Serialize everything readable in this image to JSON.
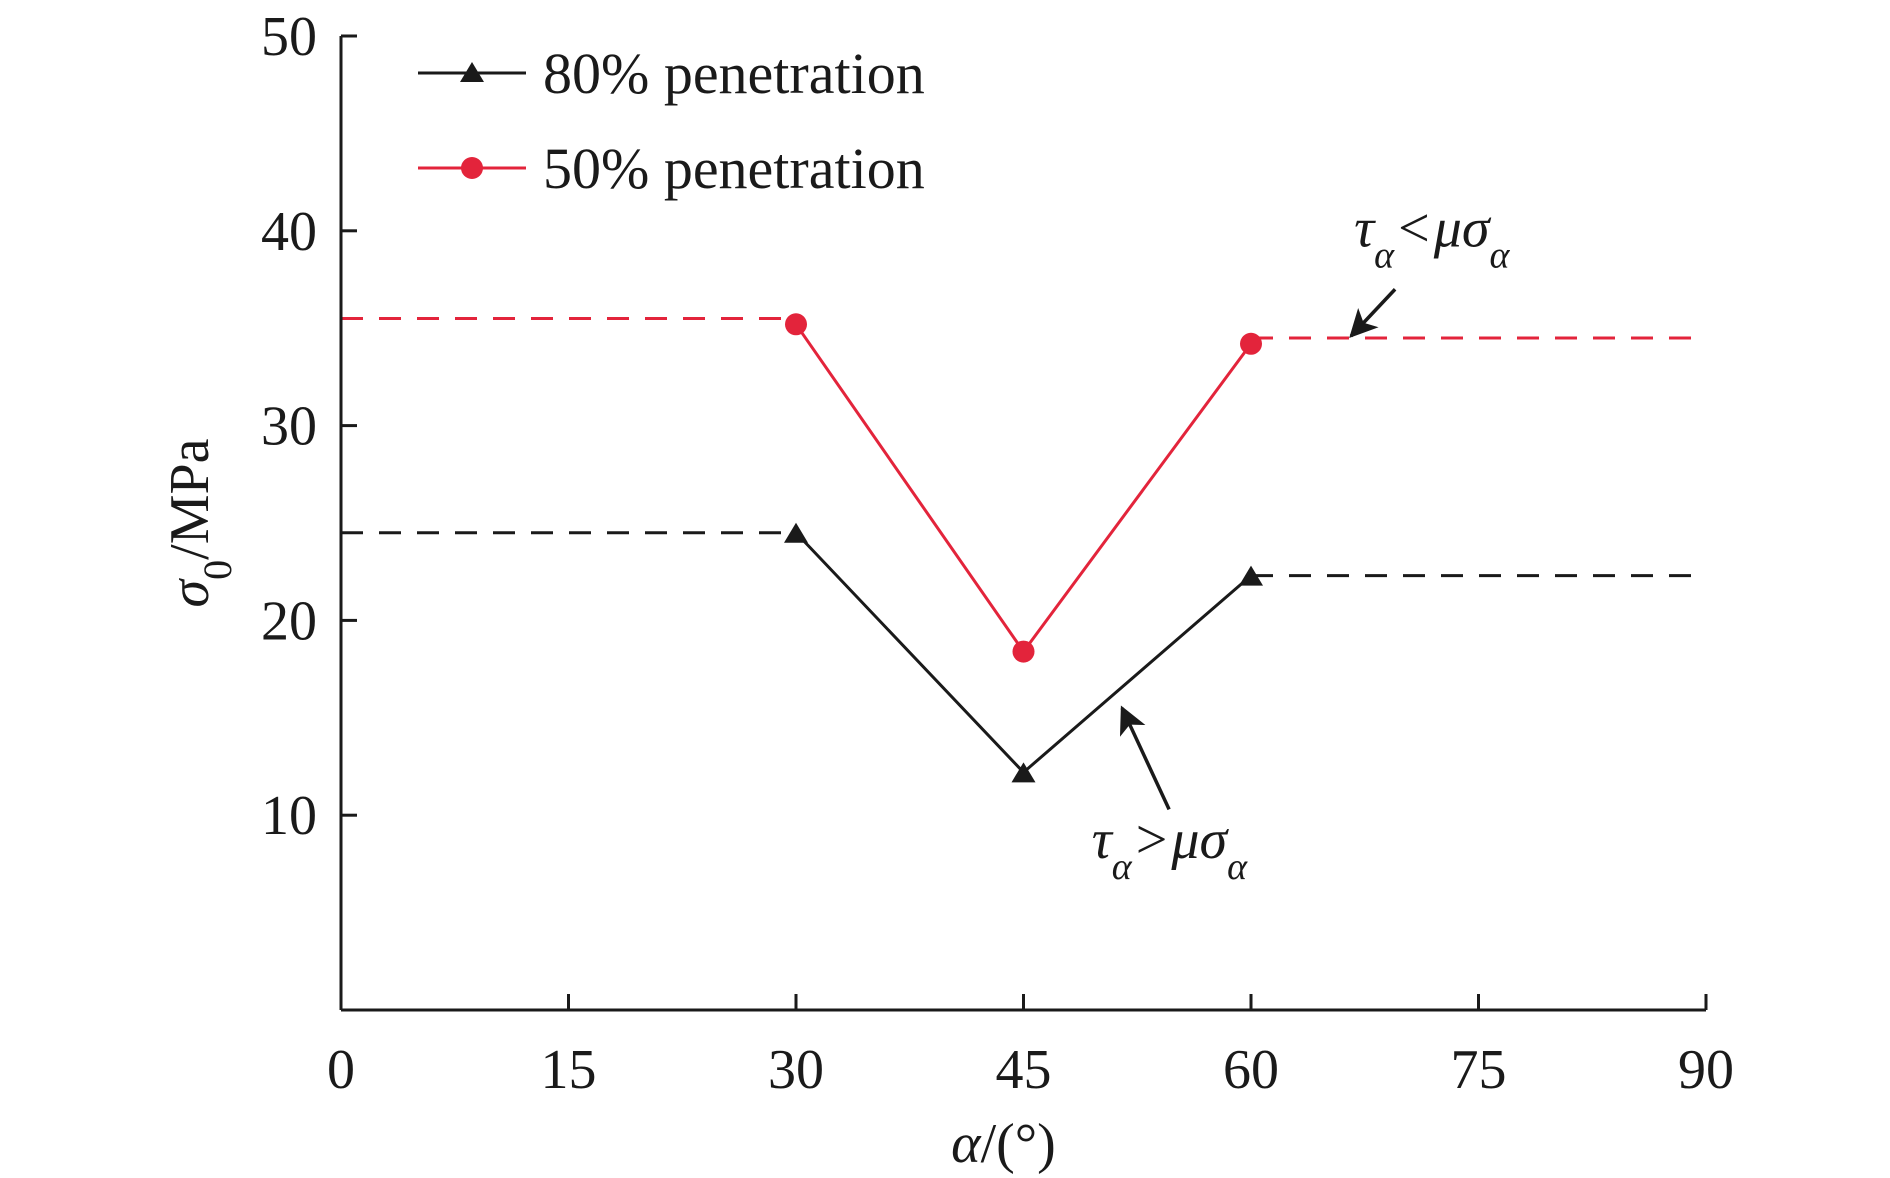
{
  "chart_data": {
    "type": "line",
    "title": "",
    "xlabel": "α/(°)",
    "ylabel_symbol": "σ",
    "ylabel_sub": "0",
    "ylabel_unit": "/MPa",
    "xlim": [
      0,
      90
    ],
    "ylim": [
      0,
      50
    ],
    "x_ticks": [
      0,
      15,
      30,
      45,
      60,
      75,
      90
    ],
    "x_tick_labels": [
      "0",
      "15",
      "30",
      "45",
      "60",
      "75",
      "90"
    ],
    "y_ticks": [
      10,
      20,
      30,
      40,
      50
    ],
    "y_tick_labels": [
      "10",
      "20",
      "30",
      "40",
      "50"
    ],
    "grid": false,
    "legend_position": "top-left",
    "series": [
      {
        "name": "80% penetration",
        "marker": "triangle",
        "color": "#1a1a1a",
        "x": [
          30,
          45,
          60
        ],
        "y": [
          24.5,
          12.2,
          22.3
        ],
        "plateau_left": 24.5,
        "plateau_right": 22.3
      },
      {
        "name": "50% penetration",
        "marker": "circle",
        "color": "#e3243b",
        "x": [
          30,
          45,
          60
        ],
        "y": [
          35.2,
          18.4,
          34.2
        ],
        "plateau_left": 35.5,
        "plateau_right": 34.5
      }
    ],
    "annotations": [
      {
        "id": "upper",
        "text_tau": "τ",
        "text_sub1": "α",
        "text_rel": "<",
        "text_mu_sigma": "μσ",
        "text_sub2": "α",
        "text_x": 66.8,
        "text_y": 39.2,
        "arrow_from": [
          69.5,
          37.0
        ],
        "arrow_to": [
          66.6,
          34.6
        ]
      },
      {
        "id": "lower",
        "text_tau": "τ",
        "text_sub1": "α",
        "text_rel": ">",
        "text_mu_sigma": "μσ",
        "text_sub2": "α",
        "text_x": 49.5,
        "text_y": 7.8,
        "arrow_from": [
          54.6,
          10.3
        ],
        "arrow_to": [
          51.5,
          15.5
        ]
      }
    ]
  }
}
